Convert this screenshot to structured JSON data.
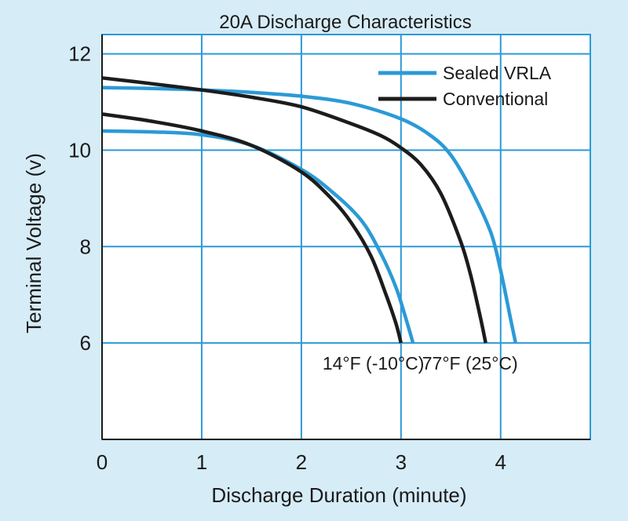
{
  "chart_data": {
    "type": "line",
    "title": "20A Discharge Characteristics",
    "xlabel": "Discharge Duration (minute)",
    "ylabel": "Terminal Voltage (v)",
    "xlim": [
      0,
      4.9
    ],
    "ylim": [
      4,
      12.4
    ],
    "xticks": [
      "0",
      "1",
      "2",
      "3",
      "4"
    ],
    "xtick_values": [
      0,
      1,
      2,
      3,
      4
    ],
    "yticks": [
      "6",
      "8",
      "10",
      "12"
    ],
    "ytick_values": [
      6,
      8,
      10,
      12
    ],
    "grid": true,
    "legend_position": "top-right",
    "colors": {
      "sealed": "#2c9ad6",
      "conventional": "#1c1c1c",
      "grid": "#2c9ad6",
      "plot_background": "#ffffff",
      "page_background": "#d6ecf7"
    },
    "legend": [
      {
        "label": "Sealed VRLA",
        "series": "sealed"
      },
      {
        "label": "Conventional",
        "series": "conventional"
      }
    ],
    "annotations": [
      {
        "text": "14°F (-10°C)",
        "x": 3.0,
        "y": 5.45
      },
      {
        "text": "77°F (25°C)",
        "x": 4.0,
        "y": 5.45
      }
    ],
    "series": [
      {
        "name": "Sealed VRLA",
        "type": "sealed",
        "temperature": "77°F (25°C)",
        "x": [
          0,
          0.5,
          1.0,
          1.5,
          2.0,
          2.5,
          3.0,
          3.3,
          3.5,
          3.7,
          3.9,
          4.0,
          4.1,
          4.15
        ],
        "y": [
          11.3,
          11.28,
          11.25,
          11.2,
          11.12,
          10.97,
          10.65,
          10.3,
          9.9,
          9.2,
          8.3,
          7.5,
          6.5,
          6.0
        ]
      },
      {
        "name": "Conventional",
        "type": "conventional",
        "temperature": "77°F (25°C)",
        "x": [
          0,
          0.5,
          1.0,
          1.5,
          2.0,
          2.5,
          2.8,
          3.0,
          3.2,
          3.4,
          3.6,
          3.7,
          3.8,
          3.85
        ],
        "y": [
          11.5,
          11.38,
          11.25,
          11.1,
          10.9,
          10.55,
          10.3,
          10.05,
          9.7,
          9.1,
          8.1,
          7.4,
          6.5,
          6.0
        ]
      },
      {
        "name": "Sealed VRLA",
        "type": "sealed",
        "temperature": "14°F (-10°C)",
        "x": [
          0,
          0.5,
          1.0,
          1.5,
          2.0,
          2.3,
          2.6,
          2.8,
          2.95,
          3.05,
          3.1,
          3.12
        ],
        "y": [
          10.4,
          10.38,
          10.32,
          10.1,
          9.6,
          9.15,
          8.55,
          7.85,
          7.15,
          6.5,
          6.15,
          6.0
        ]
      },
      {
        "name": "Conventional",
        "type": "conventional",
        "temperature": "14°F (-10°C)",
        "x": [
          0,
          0.5,
          1.0,
          1.5,
          2.0,
          2.3,
          2.5,
          2.7,
          2.85,
          2.95,
          3.0
        ],
        "y": [
          10.75,
          10.6,
          10.4,
          10.1,
          9.55,
          9.0,
          8.5,
          7.8,
          7.0,
          6.4,
          6.0
        ]
      }
    ]
  }
}
